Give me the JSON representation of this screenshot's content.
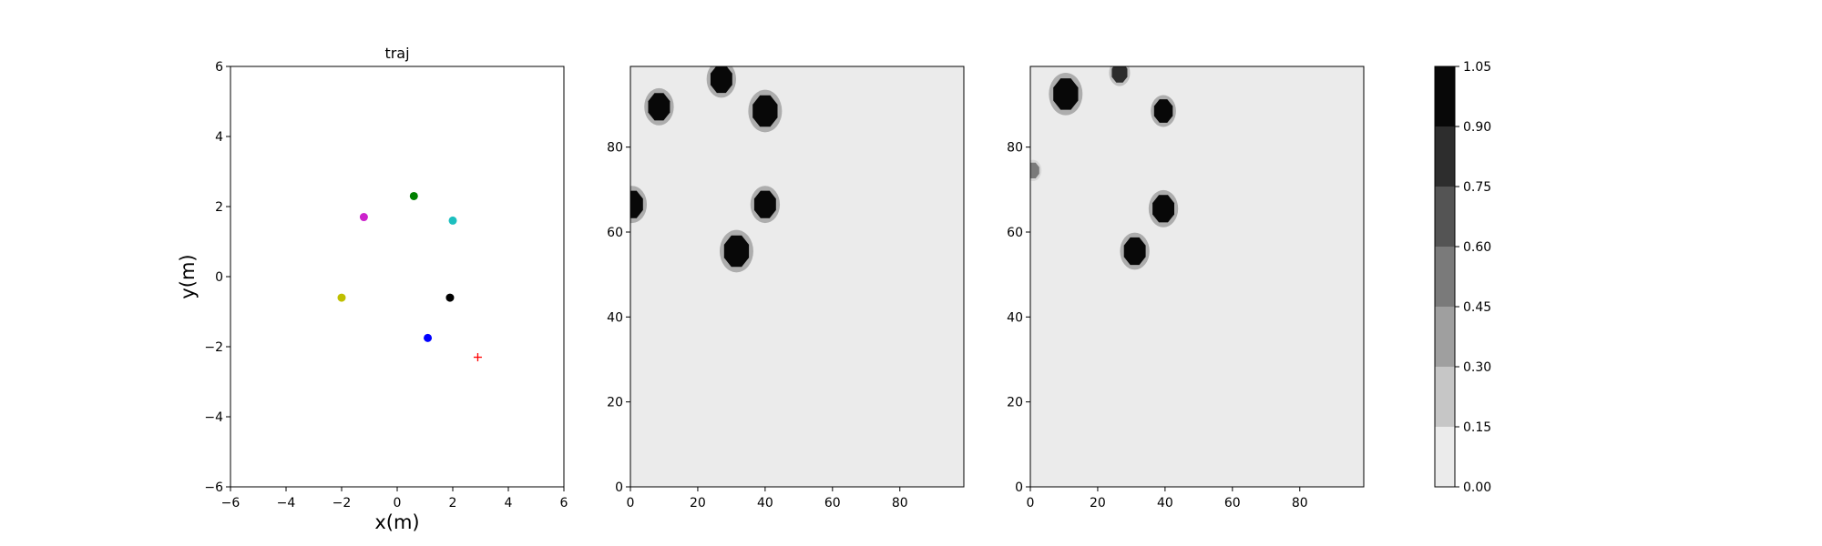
{
  "chart_data": [
    {
      "type": "scatter",
      "title": "traj",
      "xlabel": "x(m)",
      "ylabel": "y(m)",
      "xlim": [
        -6,
        6
      ],
      "ylim": [
        -6,
        6
      ],
      "xticks": [
        -6,
        -4,
        -2,
        0,
        2,
        4,
        6
      ],
      "yticks": [
        -6,
        -4,
        -2,
        0,
        2,
        4,
        6
      ],
      "grid": false,
      "points": [
        {
          "x": 0.6,
          "y": 2.3,
          "color": "#008000",
          "marker": "circle"
        },
        {
          "x": -1.2,
          "y": 1.7,
          "color": "#cc22cc",
          "marker": "circle"
        },
        {
          "x": 2.0,
          "y": 1.6,
          "color": "#1cbfbf",
          "marker": "circle"
        },
        {
          "x": -2.0,
          "y": -0.6,
          "color": "#bfbf00",
          "marker": "circle"
        },
        {
          "x": 1.9,
          "y": -0.6,
          "color": "#000000",
          "marker": "circle"
        },
        {
          "x": 1.1,
          "y": -1.75,
          "color": "#0000ff",
          "marker": "circle"
        },
        {
          "x": 2.9,
          "y": -2.3,
          "color": "#ff0000",
          "marker": "plus"
        }
      ]
    },
    {
      "type": "heatmap",
      "title": "",
      "xlim": [
        0,
        99
      ],
      "ylim": [
        0,
        99
      ],
      "xticks": [
        0,
        20,
        40,
        60,
        80
      ],
      "yticks": [
        0,
        20,
        40,
        60,
        80
      ],
      "background_value": 0.05,
      "blobs": [
        {
          "x": 27,
          "y": 96,
          "radius": 3.5,
          "value": 1.0
        },
        {
          "x": 8.5,
          "y": 89.5,
          "radius": 3.5,
          "value": 1.0
        },
        {
          "x": 40,
          "y": 88.5,
          "radius": 4.0,
          "value": 1.0
        },
        {
          "x": 0.5,
          "y": 66.5,
          "radius": 3.5,
          "value": 1.0
        },
        {
          "x": 40,
          "y": 66.5,
          "radius": 3.5,
          "value": 1.0
        },
        {
          "x": 31.5,
          "y": 55.5,
          "radius": 4.0,
          "value": 1.0
        }
      ]
    },
    {
      "type": "heatmap",
      "title": "",
      "xlim": [
        0,
        99
      ],
      "ylim": [
        0,
        99
      ],
      "xticks": [
        0,
        20,
        40,
        60,
        80
      ],
      "yticks": [
        0,
        20,
        40,
        60,
        80
      ],
      "background_value": 0.05,
      "blobs": [
        {
          "x": 10.5,
          "y": 92.5,
          "radius": 4.0,
          "value": 1.0
        },
        {
          "x": 26.5,
          "y": 97.5,
          "radius": 2.5,
          "value": 0.85
        },
        {
          "x": 39.5,
          "y": 88.5,
          "radius": 3.0,
          "value": 1.0
        },
        {
          "x": 0.8,
          "y": 74.5,
          "radius": 2.0,
          "value": 0.45
        },
        {
          "x": 39.5,
          "y": 65.5,
          "radius": 3.5,
          "value": 1.0
        },
        {
          "x": 31,
          "y": 55.5,
          "radius": 3.5,
          "value": 1.0
        }
      ]
    },
    {
      "type": "colorbar",
      "levels": [
        0.0,
        0.15,
        0.3,
        0.45,
        0.6,
        0.75,
        0.9,
        1.05
      ],
      "tick_labels": [
        "0.00",
        "0.15",
        "0.30",
        "0.45",
        "0.60",
        "0.75",
        "0.90",
        "1.05"
      ],
      "colors": [
        "#ebebeb",
        "#c6c6c6",
        "#9f9f9f",
        "#7a7a7a",
        "#545454",
        "#2d2d2d",
        "#080808"
      ]
    }
  ]
}
